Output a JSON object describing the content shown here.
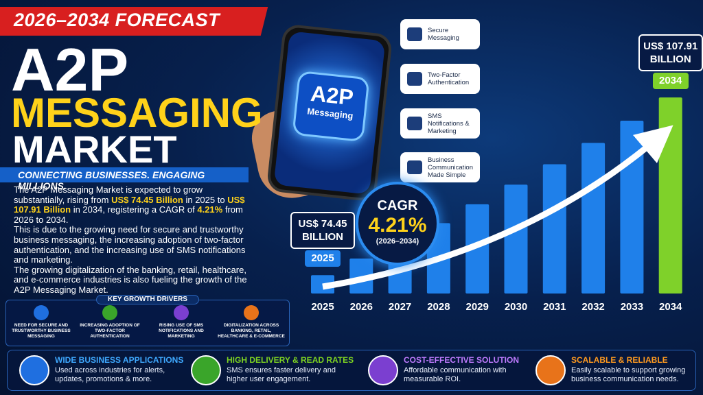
{
  "banner": "2026–2034 FORECAST",
  "title": {
    "line1": "A2P",
    "line2": "MESSAGING",
    "line3": "MARKET"
  },
  "tagline": "CONNECTING BUSINESSES. ENGAGING MILLIONS.",
  "description": {
    "paragraph1": [
      "The A2P Messaging Market is expected to grow substantially, rising from ",
      "US$ 74.45 Billion",
      " in 2025 to ",
      "US$ 107.91 Billion",
      " in 2034, registering a CAGR of ",
      "4.21%",
      " from 2026 to 2034."
    ],
    "paragraph2": "This is due to the growing need for secure and trustworthy business messaging, the increasing adoption of two-factor authentication, and the increasing use of SMS notifications and marketing.",
    "paragraph3": "The growing digitalization of the banking, retail, healthcare, and e-commerce industries is also fueling the growth of the A2P Messaging Market."
  },
  "phone_label": {
    "line1": "A2P",
    "line2": "Messaging"
  },
  "features": [
    "Secure Messaging",
    "Two-Factor Authentication",
    "SMS Notifications & Marketing",
    "Business Communication Made Simple"
  ],
  "drivers": {
    "title": "KEY GROWTH DRIVERS",
    "items": [
      "NEED FOR SECURE AND TRUSTWORTHY BUSINESS MESSAGING",
      "INCREASING ADOPTION OF TWO-FACTOR AUTHENTICATION",
      "RISING USE OF SMS NOTIFICATIONS AND MARKETING",
      "DIGITALIZATION ACROSS BANKING, RETAIL, HEALTHCARE & E-COMMERCE"
    ]
  },
  "cagr": {
    "label": "CAGR",
    "value": "4.21%",
    "period": "(2026–2034)"
  },
  "chart_data": {
    "type": "bar",
    "categories": [
      "2025",
      "2026",
      "2027",
      "2028",
      "2029",
      "2030",
      "2031",
      "2032",
      "2033",
      "2034"
    ],
    "values": [
      74.45,
      77.58,
      80.85,
      84.26,
      87.8,
      91.5,
      95.35,
      99.36,
      103.55,
      107.91
    ],
    "value_labels": [
      "US$ 74.45 BILLION",
      null,
      null,
      null,
      null,
      null,
      null,
      null,
      null,
      "US$ 107.91 BILLION"
    ],
    "colors": [
      "#1f80ea",
      "#1f80ea",
      "#1f80ea",
      "#1f80ea",
      "#1f80ea",
      "#1f80ea",
      "#1f80ea",
      "#1f80ea",
      "#1f80ea",
      "#7fd12a"
    ],
    "ylim": [
      71,
      110
    ]
  },
  "benefits": [
    {
      "title": "WIDE BUSINESS APPLICATIONS",
      "text": "Used across industries for alerts, updates, promotions & more."
    },
    {
      "title": "HIGH DELIVERY & READ RATES",
      "text": "SMS ensures faster delivery and higher user engagement."
    },
    {
      "title": "COST-EFFECTIVE SOLUTION",
      "text": "Affordable communication with measurable ROI."
    },
    {
      "title": "SCALABLE & RELIABLE",
      "text": "Easily scalable to support growing business communication needs."
    }
  ]
}
